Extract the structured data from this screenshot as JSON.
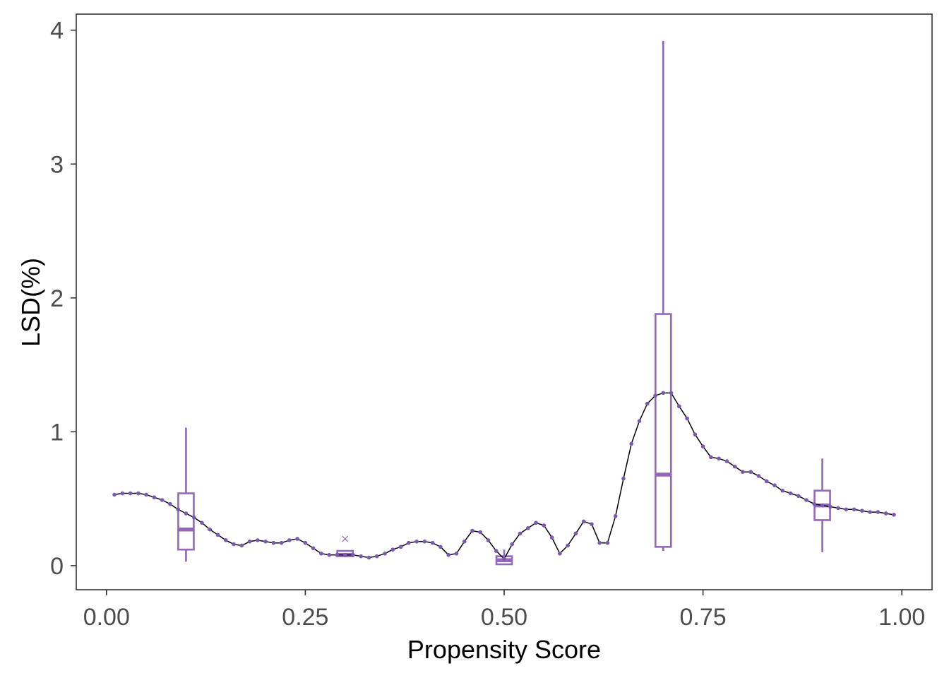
{
  "chart_data": {
    "type": "line",
    "title": "",
    "xlabel": "Propensity Score",
    "ylabel": "LSD(%)",
    "xlim": [
      -0.038,
      1.038
    ],
    "ylim": [
      -0.18,
      4.12
    ],
    "x_ticks": [
      "0.00",
      "0.25",
      "0.50",
      "0.75",
      "1.00"
    ],
    "x_tick_values": [
      0,
      0.25,
      0.5,
      0.75,
      1.0
    ],
    "y_ticks": [
      "0",
      "1",
      "2",
      "3",
      "4"
    ],
    "y_tick_values": [
      0,
      1,
      2,
      3,
      4
    ],
    "grid": false,
    "colors": {
      "points": "#7a5ab0",
      "line": "#000000",
      "box": "#9467bd",
      "axis": "#333333",
      "tick_text": "#4d4d4d"
    },
    "series": [
      {
        "values_x": [
          0.01,
          0.02,
          0.03,
          0.04,
          0.05,
          0.06,
          0.07,
          0.08,
          0.09,
          0.1,
          0.11,
          0.12,
          0.13,
          0.14,
          0.15,
          0.16,
          0.17,
          0.18,
          0.19,
          0.2,
          0.21,
          0.22,
          0.23,
          0.24,
          0.25,
          0.26,
          0.27,
          0.28,
          0.29,
          0.3,
          0.31,
          0.32,
          0.33,
          0.34,
          0.35,
          0.36,
          0.37,
          0.38,
          0.39,
          0.4,
          0.41,
          0.42,
          0.43,
          0.44,
          0.45,
          0.46,
          0.47,
          0.48,
          0.49,
          0.5,
          0.51,
          0.52,
          0.53,
          0.54,
          0.55,
          0.56,
          0.57,
          0.58,
          0.59,
          0.6,
          0.61,
          0.62,
          0.63,
          0.64,
          0.65,
          0.66,
          0.67,
          0.68,
          0.69,
          0.7,
          0.71,
          0.72,
          0.73,
          0.74,
          0.75,
          0.76,
          0.77,
          0.78,
          0.79,
          0.8,
          0.81,
          0.82,
          0.83,
          0.84,
          0.85,
          0.86,
          0.87,
          0.88,
          0.89,
          0.9,
          0.91,
          0.92,
          0.93,
          0.94,
          0.95,
          0.96,
          0.97,
          0.98,
          0.99
        ],
        "values_y": [
          0.53,
          0.54,
          0.54,
          0.54,
          0.53,
          0.51,
          0.49,
          0.46,
          0.42,
          0.39,
          0.36,
          0.32,
          0.27,
          0.23,
          0.19,
          0.16,
          0.15,
          0.18,
          0.19,
          0.18,
          0.17,
          0.17,
          0.19,
          0.2,
          0.17,
          0.13,
          0.09,
          0.08,
          0.08,
          0.08,
          0.08,
          0.07,
          0.06,
          0.07,
          0.09,
          0.12,
          0.14,
          0.17,
          0.18,
          0.18,
          0.17,
          0.14,
          0.08,
          0.09,
          0.18,
          0.26,
          0.25,
          0.19,
          0.11,
          0.05,
          0.16,
          0.24,
          0.28,
          0.32,
          0.3,
          0.21,
          0.09,
          0.15,
          0.24,
          0.33,
          0.31,
          0.17,
          0.17,
          0.37,
          0.65,
          0.91,
          1.08,
          1.21,
          1.27,
          1.29,
          1.29,
          1.19,
          1.1,
          0.98,
          0.89,
          0.81,
          0.8,
          0.78,
          0.74,
          0.7,
          0.7,
          0.67,
          0.63,
          0.6,
          0.56,
          0.54,
          0.52,
          0.49,
          0.46,
          0.45,
          0.44,
          0.43,
          0.42,
          0.42,
          0.41,
          0.4,
          0.4,
          0.39,
          0.38
        ]
      }
    ],
    "boxplots": [
      {
        "x": 0.1,
        "whisker_low": 0.03,
        "q1": 0.12,
        "median": 0.27,
        "q3": 0.54,
        "whisker_high": 1.03,
        "outliers": []
      },
      {
        "x": 0.3,
        "whisker_low": 0.07,
        "q1": 0.07,
        "median": 0.08,
        "q3": 0.11,
        "whisker_high": 0.11,
        "outliers": [
          0.2
        ]
      },
      {
        "x": 0.5,
        "whisker_low": 0.01,
        "q1": 0.01,
        "median": 0.04,
        "q3": 0.07,
        "whisker_high": 0.12,
        "outliers": []
      },
      {
        "x": 0.7,
        "whisker_low": 0.11,
        "q1": 0.14,
        "median": 0.68,
        "q3": 1.88,
        "whisker_high": 3.92,
        "outliers": []
      },
      {
        "x": 0.9,
        "whisker_low": 0.1,
        "q1": 0.34,
        "median": 0.45,
        "q3": 0.56,
        "whisker_high": 0.8,
        "outliers": []
      }
    ]
  }
}
